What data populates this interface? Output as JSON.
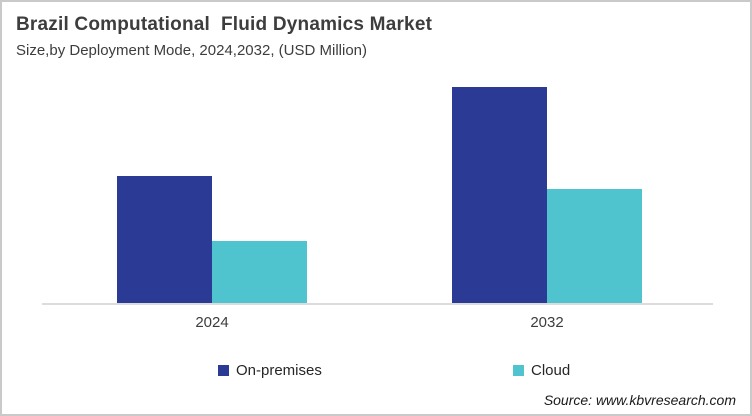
{
  "header": {
    "title": "Brazil Computational  Fluid Dynamics Market",
    "subtitle": "Size,by Deployment Mode, 2024,2032, (USD Million)"
  },
  "source": "Source: www.kbvresearch.com",
  "colors": {
    "on_premises": "#2b3a94",
    "cloud": "#4fc3ce",
    "axis_line": "#dcdcdc",
    "text": "#3d3d3d",
    "frame_border": "#c9c9c9",
    "background": "#ffffff"
  },
  "legend": [
    {
      "label": "On-premises",
      "color": "#2b3a94"
    },
    {
      "label": "Cloud",
      "color": "#4fc3ce"
    }
  ],
  "chart_data": {
    "type": "bar",
    "title": "Brazil Computational Fluid Dynamics Market",
    "subtitle": "Size,by Deployment Mode, 2024,2032, (USD Million)",
    "categories": [
      "2024",
      "2032"
    ],
    "series": [
      {
        "name": "On-premises",
        "color": "#2b3a94",
        "values": [
          59,
          100
        ]
      },
      {
        "name": "Cloud",
        "color": "#4fc3ce",
        "values": [
          29,
          53
        ]
      }
    ],
    "xlabel": "",
    "ylabel": "USD Million",
    "ylim": [
      0,
      103
    ],
    "y_axis_labels_visible": false,
    "value_note": "No y-axis ticks or data labels shown; values are relative bar heights normalized so the tallest bar (On-premises 2032) = 100.",
    "grid": false,
    "legend_position": "bottom"
  }
}
